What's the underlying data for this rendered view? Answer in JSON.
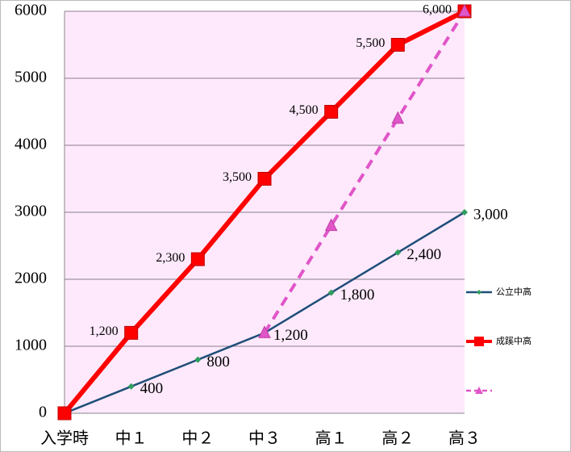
{
  "chart_data": {
    "type": "line",
    "categories": [
      "入学時",
      "中１",
      "中２",
      "中３",
      "高１",
      "高２",
      "高３"
    ],
    "ylim": [
      0,
      6000
    ],
    "yticks": [
      0,
      1000,
      2000,
      3000,
      4000,
      5000,
      6000
    ],
    "grid": true,
    "series": [
      {
        "name": "公立中高",
        "color": "#1f4e79",
        "marker": "diamond",
        "values": [
          0,
          400,
          800,
          1200,
          1800,
          2400,
          3000
        ],
        "value_labels": [
          null,
          "400",
          "800",
          "1,200",
          "1,800",
          "2,400",
          "3,000"
        ]
      },
      {
        "name": "成蹊中高",
        "color": "#ff0000",
        "marker": "square",
        "values": [
          0,
          1200,
          2300,
          3500,
          4500,
          5500,
          6000
        ],
        "value_labels": [
          null,
          "1,200",
          "2,300",
          "3,500",
          "4,500",
          "5,500",
          "6,000"
        ]
      },
      {
        "color": "#e055c8",
        "marker": "triangle",
        "dashed": true,
        "values": [
          null,
          null,
          null,
          1200,
          2800,
          4400,
          6000
        ]
      }
    ]
  }
}
